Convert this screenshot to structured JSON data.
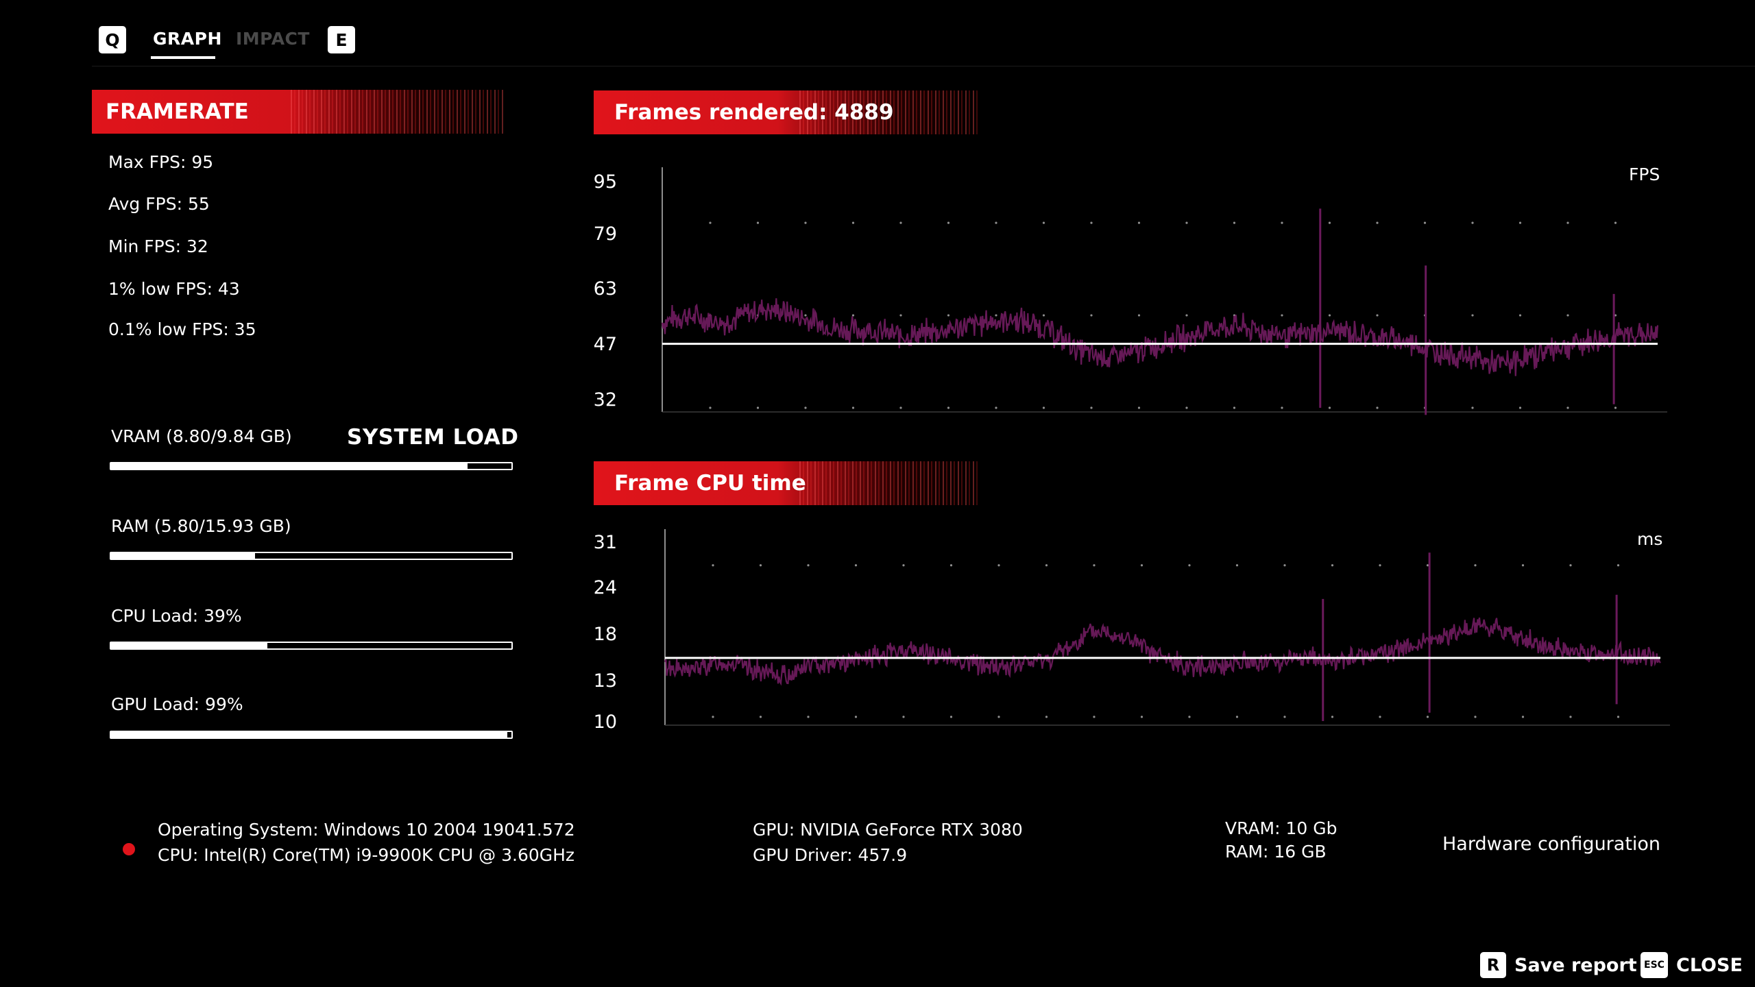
{
  "nav": {
    "left_key": "Q",
    "right_key": "E",
    "tabs": [
      {
        "label": "GRAPH",
        "active": true
      },
      {
        "label": "IMPACT",
        "active": false
      }
    ]
  },
  "framerate": {
    "header": "FRAMERATE",
    "stats": [
      "Max FPS: 95",
      "Avg FPS: 55",
      "Min FPS: 32",
      "1% low FPS: 43",
      "0.1% low FPS: 35"
    ]
  },
  "system_load": {
    "title": "SYSTEM LOAD",
    "items": [
      {
        "label": "VRAM (8.80/9.84 GB)",
        "fill": 0.89
      },
      {
        "label": "RAM (5.80/15.93 GB)",
        "fill": 0.36
      },
      {
        "label": "CPU Load: 39%",
        "fill": 0.39
      },
      {
        "label": "GPU Load: 99%",
        "fill": 0.99
      }
    ]
  },
  "fps_chart": {
    "header": "Frames rendered: 4889",
    "unit": "FPS",
    "ticks": [
      "95",
      "79",
      "63",
      "47",
      "32"
    ]
  },
  "cpu_chart": {
    "header": "Frame CPU time",
    "unit": "ms",
    "ticks": [
      "31",
      "24",
      "18",
      "13",
      "10"
    ]
  },
  "chart_data": [
    {
      "type": "line",
      "title": "Frames rendered: 4889",
      "ylabel": "FPS",
      "ylim": [
        32,
        95
      ],
      "yticks": [
        95,
        79,
        63,
        47,
        32
      ],
      "average": 50,
      "series": [
        {
          "color": "#6b1a5c",
          "values": [
            56,
            58,
            57,
            56,
            58,
            60,
            59,
            57,
            55,
            54,
            54,
            53,
            52,
            53,
            54,
            55,
            56,
            57,
            56,
            54,
            50,
            47,
            46,
            47,
            49,
            51,
            52,
            54,
            55,
            54,
            53,
            52,
            53,
            54,
            53,
            52,
            51,
            50,
            48,
            47,
            46,
            44,
            45,
            47,
            49,
            50,
            51,
            52,
            53,
            52
          ]
        }
      ]
    },
    {
      "type": "line",
      "title": "Frame CPU time",
      "ylabel": "ms",
      "ylim": [
        10,
        31
      ],
      "yticks": [
        31,
        24,
        18,
        13,
        10
      ],
      "average": 17.5,
      "series": [
        {
          "color": "#6b1a5c",
          "values": [
            16.5,
            16,
            16.5,
            17,
            16.5,
            15.5,
            15.5,
            16.5,
            17,
            17,
            17.5,
            18,
            18.5,
            18,
            17.5,
            17,
            16.5,
            16.5,
            17,
            17.5,
            19,
            20.5,
            20.5,
            19.5,
            18,
            17,
            16.5,
            16.5,
            17,
            17,
            17,
            17.5,
            17.5,
            17,
            17.5,
            18,
            18.5,
            19,
            19.5,
            20.5,
            21.5,
            21,
            20,
            19,
            18.5,
            18,
            18,
            18,
            17.5,
            17.5
          ]
        }
      ]
    }
  ],
  "hardware": {
    "os": "Operating System: Windows 10 2004 19041.572",
    "cpu": "CPU: Intel(R) Core(TM) i9-9900K CPU @ 3.60GHz",
    "gpu": "GPU: NVIDIA GeForce RTX 3080",
    "gpu_driver": "GPU Driver: 457.9",
    "vram": "VRAM: 10 Gb",
    "ram": "RAM: 16 GB",
    "title": "Hardware configuration"
  },
  "actions": {
    "save_key": "R",
    "save_label": "Save report",
    "close_key": "ESC",
    "close_label": "CLOSE"
  }
}
